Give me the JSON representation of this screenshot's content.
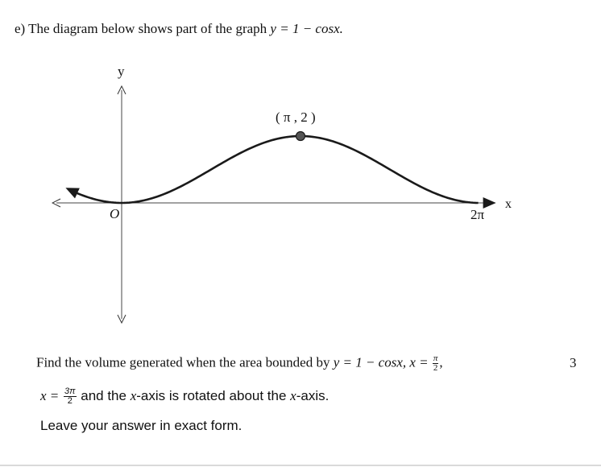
{
  "question": {
    "part_label": "e)",
    "intro_text": "The diagram below shows part of the graph",
    "function_expr": "y = 1 − cosx.",
    "body_line1_text": "Find the volume generated when the area bounded by",
    "body_line1_expr": "y = 1 − cosx, x =",
    "frac1_num": "π",
    "frac1_den": "2",
    "frac1_after": ",",
    "body_line2_prefix": "x =",
    "frac2_num": "3π",
    "frac2_den": "2",
    "body_line2_text_a": "and the",
    "body_line2_var1": "x",
    "body_line2_text_b": "-axis is rotated about the",
    "body_line2_var2": "x",
    "body_line2_text_c": "-axis.",
    "instruction": "Leave your answer in exact form.",
    "marks": "3"
  },
  "diagram": {
    "y_axis_label": "y",
    "x_axis_label": "x",
    "origin_label": "O",
    "x_end_label": "2π",
    "max_point_label": "( π , 2 )",
    "max_point": {
      "x": 3.14159,
      "y": 2
    },
    "curve_x_range": [
      -0.9,
      2.55
    ],
    "curve_color": "#1a1a1a"
  }
}
